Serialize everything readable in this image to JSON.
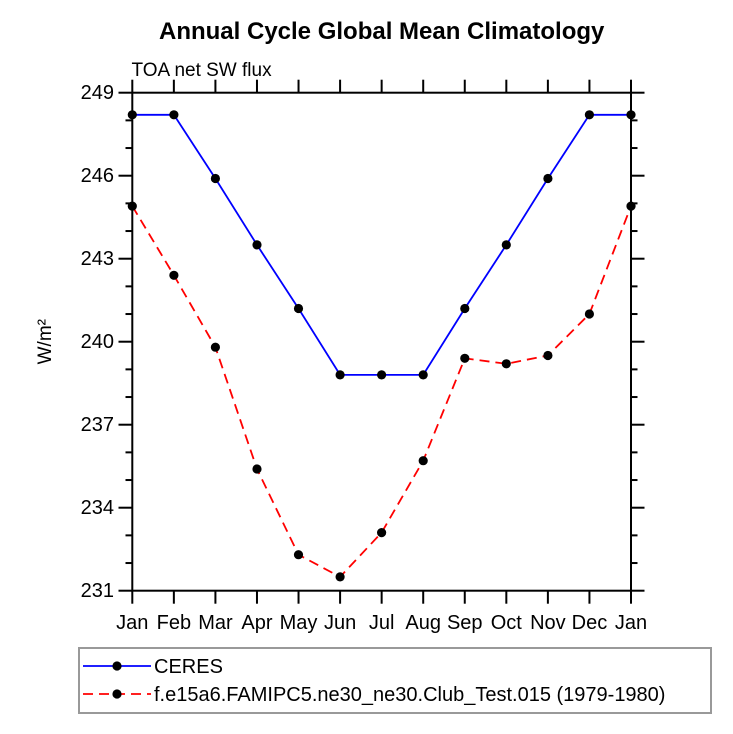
{
  "chart_data": {
    "type": "line",
    "title": "Annual Cycle Global Mean Climatology",
    "subtitle": "TOA net SW flux",
    "ylabel": "W/m²",
    "xlabel": "",
    "ylim": [
      231,
      249
    ],
    "yticks": [
      231,
      234,
      237,
      240,
      243,
      246,
      249
    ],
    "minor_tick_step": 1,
    "grid": false,
    "categories": [
      "Jan",
      "Feb",
      "Mar",
      "Apr",
      "May",
      "Jun",
      "Jul",
      "Aug",
      "Sep",
      "Oct",
      "Nov",
      "Dec",
      "Jan"
    ],
    "axis_color": "#000000",
    "marker_color": "#000000",
    "legend_position": "below-left",
    "legend_border_color": "#999999",
    "series": [
      {
        "name": "CERES",
        "color": "#0000ff",
        "line_style": "solid",
        "marker": "filled-circle",
        "values": [
          248.2,
          248.2,
          245.9,
          243.5,
          241.2,
          238.8,
          238.8,
          238.8,
          241.2,
          243.5,
          245.9,
          248.2,
          248.2
        ]
      },
      {
        "name": "f.e15a6.FAMIPC5.ne30_ne30.Club_Test.015 (1979-1980)",
        "color": "#ff0000",
        "line_style": "dashed",
        "marker": "filled-circle",
        "values": [
          244.9,
          242.4,
          239.8,
          235.4,
          232.3,
          231.5,
          233.1,
          235.7,
          239.4,
          239.2,
          239.5,
          241.0,
          244.9
        ]
      }
    ]
  }
}
